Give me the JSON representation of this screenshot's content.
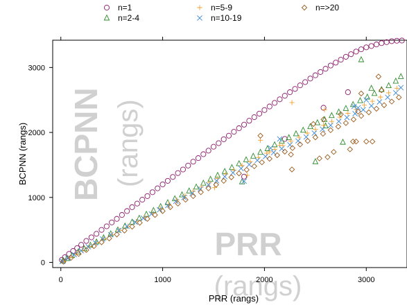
{
  "chart_data": {
    "type": "scatter",
    "xlabel": "PRR (rangs)",
    "ylabel": "BCPNN (rangs)",
    "watermarks": {
      "y": [
        "BCPNN",
        "(rangs)"
      ],
      "x": [
        "PRR",
        "(rangs)"
      ]
    },
    "xlim": [
      -80,
      3400
    ],
    "ylim": [
      -80,
      3420
    ],
    "xticks": [
      0,
      1000,
      2000,
      3000
    ],
    "yticks": [
      0,
      1000,
      2000,
      3000
    ],
    "legend_position": "top",
    "series": [
      {
        "name": "n=1",
        "marker": "circle",
        "color": "#8B1A6B",
        "x": [
          10,
          40,
          80,
          120,
          160,
          200,
          250,
          300,
          350,
          400,
          450,
          500,
          550,
          600,
          650,
          700,
          750,
          800,
          850,
          900,
          950,
          1000,
          1050,
          1100,
          1150,
          1200,
          1250,
          1300,
          1350,
          1400,
          1450,
          1500,
          1550,
          1600,
          1650,
          1700,
          1750,
          1800,
          1850,
          1900,
          1950,
          2000,
          2050,
          2100,
          2150,
          2200,
          2250,
          2300,
          2350,
          2400,
          2450,
          2500,
          2550,
          2600,
          2650,
          2700,
          2750,
          2800,
          2850,
          2900,
          2950,
          3000,
          3050,
          3100,
          3150,
          3200,
          3250,
          3300,
          3350,
          1800,
          2200,
          2580,
          2820
        ],
        "y": [
          40,
          80,
          130,
          175,
          220,
          270,
          330,
          385,
          440,
          500,
          555,
          615,
          670,
          730,
          790,
          850,
          905,
          965,
          1020,
          1080,
          1140,
          1200,
          1255,
          1315,
          1375,
          1430,
          1490,
          1550,
          1605,
          1665,
          1720,
          1780,
          1835,
          1895,
          1950,
          2010,
          2065,
          2120,
          2180,
          2235,
          2290,
          2345,
          2400,
          2455,
          2510,
          2565,
          2620,
          2670,
          2725,
          2775,
          2830,
          2880,
          2930,
          2980,
          3030,
          3075,
          3120,
          3165,
          3205,
          3245,
          3280,
          3310,
          3330,
          3355,
          3375,
          3390,
          3405,
          3412,
          3415,
          1320,
          1900,
          2380,
          2620
        ]
      },
      {
        "name": "n=2-4",
        "marker": "triangle",
        "color": "#2E8B2E",
        "x": [
          20,
          60,
          110,
          170,
          230,
          290,
          350,
          420,
          490,
          560,
          630,
          700,
          770,
          840,
          910,
          980,
          1050,
          1120,
          1190,
          1260,
          1330,
          1400,
          1470,
          1540,
          1610,
          1680,
          1750,
          1820,
          1890,
          1960,
          2030,
          2100,
          2170,
          2240,
          2310,
          2380,
          2450,
          2520,
          2590,
          2660,
          2730,
          2800,
          2870,
          2940,
          3010,
          3080,
          3150,
          3220,
          3290,
          3340,
          2500,
          2770,
          3050,
          1780,
          2600,
          2950
        ],
        "y": [
          25,
          60,
          105,
          160,
          210,
          265,
          315,
          380,
          440,
          500,
          560,
          620,
          680,
          740,
          800,
          860,
          920,
          980,
          1040,
          1100,
          1160,
          1220,
          1280,
          1340,
          1400,
          1460,
          1520,
          1580,
          1635,
          1695,
          1750,
          1810,
          1865,
          1920,
          1980,
          2035,
          2090,
          2150,
          2200,
          2260,
          2315,
          2370,
          2430,
          2490,
          2545,
          2600,
          2660,
          2720,
          2790,
          2860,
          1550,
          1850,
          2680,
          1240,
          2100,
          3120
        ]
      },
      {
        "name": "n=5-9",
        "marker": "plus",
        "color": "#F0A030",
        "x": [
          30,
          90,
          150,
          210,
          280,
          350,
          420,
          500,
          580,
          660,
          740,
          820,
          900,
          980,
          1060,
          1140,
          1220,
          1300,
          1380,
          1460,
          1540,
          1620,
          1700,
          1780,
          1860,
          1940,
          2020,
          2100,
          2180,
          2260,
          2340,
          2420,
          2500,
          2580,
          2660,
          2740,
          2820,
          2900,
          2980,
          3060,
          3140,
          3220,
          3300,
          1510,
          1960,
          2050,
          2150,
          2590,
          1830,
          2270
        ],
        "y": [
          20,
          75,
          130,
          185,
          245,
          300,
          360,
          430,
          495,
          560,
          630,
          695,
          760,
          830,
          895,
          960,
          1030,
          1095,
          1160,
          1225,
          1290,
          1360,
          1420,
          1490,
          1550,
          1615,
          1680,
          1740,
          1800,
          1865,
          1925,
          1990,
          2050,
          2110,
          2170,
          2235,
          2295,
          2355,
          2420,
          2480,
          2545,
          2610,
          2680,
          1150,
          1880,
          1700,
          1800,
          2350,
          1340,
          2460
        ]
      },
      {
        "name": "n=10-19",
        "marker": "cross",
        "color": "#3A86D9",
        "x": [
          15,
          70,
          130,
          200,
          270,
          340,
          410,
          490,
          570,
          650,
          730,
          810,
          890,
          970,
          1050,
          1130,
          1210,
          1290,
          1370,
          1450,
          1530,
          1610,
          1690,
          1770,
          1850,
          1930,
          2010,
          2090,
          2170,
          2250,
          2330,
          2410,
          2490,
          2570,
          2650,
          2730,
          2810,
          2890,
          2970,
          3050,
          3130,
          3210,
          3290,
          3340,
          2060,
          2150,
          2880,
          2920,
          3000,
          1800
        ],
        "y": [
          15,
          65,
          120,
          180,
          240,
          300,
          360,
          425,
          490,
          555,
          620,
          680,
          745,
          810,
          875,
          940,
          1000,
          1065,
          1130,
          1195,
          1255,
          1320,
          1380,
          1445,
          1505,
          1570,
          1630,
          1690,
          1750,
          1810,
          1870,
          1930,
          1990,
          2050,
          2110,
          2170,
          2230,
          2290,
          2350,
          2410,
          2470,
          2540,
          2610,
          2690,
          1760,
          1900,
          2400,
          2380,
          2500,
          1250
        ]
      },
      {
        "name": "n=>20",
        "marker": "diamond",
        "color": "#9B5A1A",
        "x": [
          25,
          100,
          175,
          250,
          325,
          400,
          475,
          550,
          625,
          700,
          775,
          850,
          925,
          1000,
          1075,
          1150,
          1225,
          1300,
          1375,
          1450,
          1525,
          1600,
          1675,
          1750,
          1825,
          1900,
          1975,
          2050,
          2125,
          2200,
          2275,
          2350,
          2425,
          2500,
          2575,
          2650,
          2725,
          2800,
          2875,
          2950,
          3025,
          3100,
          3175,
          3250,
          3320,
          2270,
          2540,
          2620,
          2680,
          2840,
          2870,
          2900,
          3000,
          3060,
          2480,
          2580,
          2920,
          3150,
          1960,
          2260,
          2750,
          2950,
          3120
        ],
        "y": [
          10,
          70,
          130,
          190,
          250,
          310,
          370,
          430,
          490,
          550,
          610,
          670,
          730,
          790,
          850,
          905,
          965,
          1020,
          1080,
          1140,
          1195,
          1255,
          1310,
          1370,
          1425,
          1480,
          1540,
          1595,
          1650,
          1705,
          1760,
          1815,
          1870,
          1925,
          1980,
          2035,
          2090,
          2145,
          2200,
          2255,
          2310,
          2365,
          2420,
          2475,
          2540,
          1430,
          1600,
          1620,
          1700,
          1740,
          1860,
          1860,
          1860,
          1860,
          2130,
          2200,
          2320,
          2650,
          1950,
          1660,
          2280,
          2600,
          2860
        ]
      }
    ]
  }
}
